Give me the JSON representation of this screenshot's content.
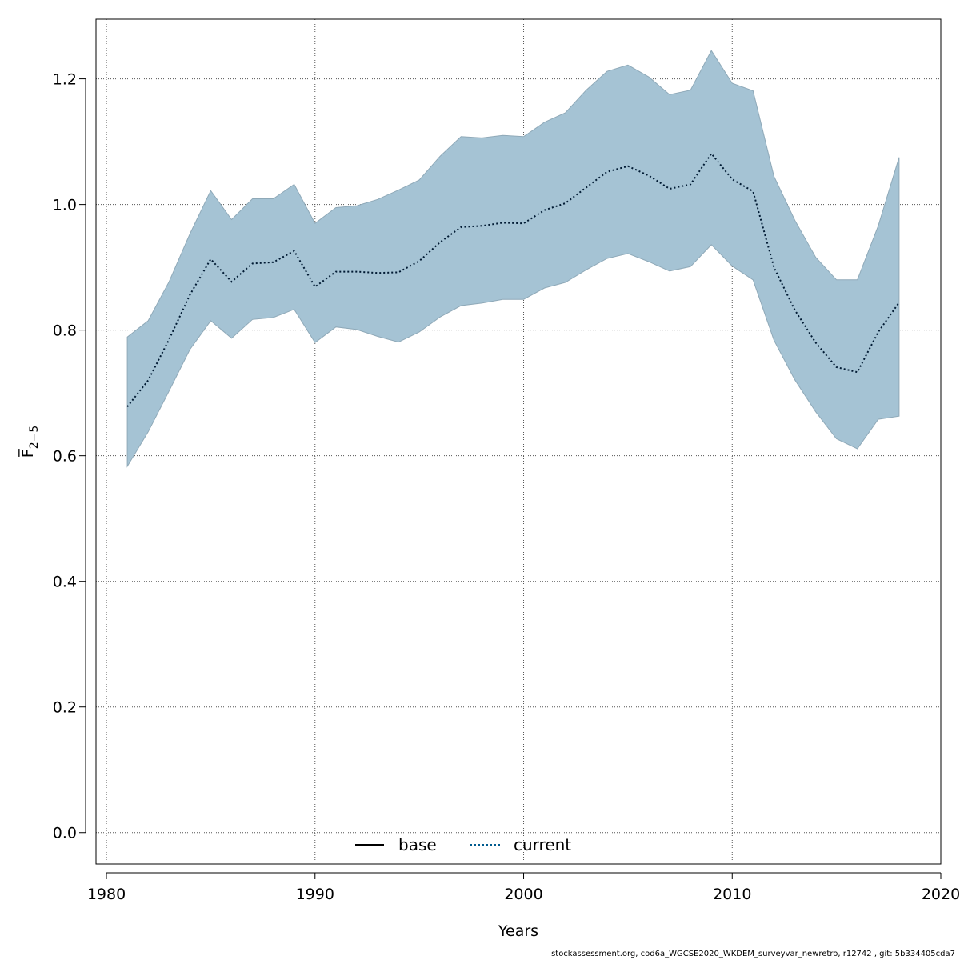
{
  "chart_data": {
    "type": "line",
    "xlabel": "Years",
    "ylabel": "F̅",
    "ylabel_sub": "2−5",
    "xlim": [
      1979.5,
      2020
    ],
    "ylim": [
      -0.05,
      1.295
    ],
    "x_ticks": [
      1980,
      1990,
      2000,
      2010,
      2020
    ],
    "y_ticks": [
      0.0,
      0.2,
      0.4,
      0.6,
      0.8,
      1.0,
      1.2
    ],
    "x_tick_labels": [
      "1980",
      "1990",
      "2000",
      "2010",
      "2020"
    ],
    "y_tick_labels": [
      "0.0",
      "0.2",
      "0.4",
      "0.6",
      "0.8",
      "1.0",
      "1.2"
    ],
    "grid": true,
    "legend_position": "bottom-center",
    "legend": [
      {
        "label": "base",
        "style": "solid",
        "color": "#000000"
      },
      {
        "label": "current",
        "style": "dotted",
        "color": "#005b8f"
      }
    ],
    "band_color": "#a5c3d4",
    "x": [
      1981,
      1982,
      1983,
      1984,
      1985,
      1986,
      1987,
      1988,
      1989,
      1990,
      1991,
      1992,
      1993,
      1994,
      1995,
      1996,
      1997,
      1998,
      1999,
      2000,
      2001,
      2002,
      2003,
      2004,
      2005,
      2006,
      2007,
      2008,
      2009,
      2010,
      2011,
      2012,
      2013,
      2014,
      2015,
      2016,
      2017,
      2018
    ],
    "series": [
      {
        "name": "current",
        "values": [
          0.678,
          0.72,
          0.785,
          0.856,
          0.913,
          0.877,
          0.906,
          0.908,
          0.926,
          0.869,
          0.893,
          0.893,
          0.891,
          0.892,
          0.91,
          0.94,
          0.964,
          0.966,
          0.971,
          0.97,
          0.991,
          1.002,
          1.027,
          1.052,
          1.061,
          1.046,
          1.025,
          1.032,
          1.081,
          1.04,
          1.021,
          0.9,
          0.832,
          0.78,
          0.741,
          0.733,
          0.797,
          0.844
        ]
      }
    ],
    "band_upper": [
      0.789,
      0.815,
      0.877,
      0.953,
      1.022,
      0.976,
      1.009,
      1.009,
      1.032,
      0.97,
      0.995,
      0.998,
      1.008,
      1.023,
      1.039,
      1.077,
      1.108,
      1.106,
      1.11,
      1.108,
      1.131,
      1.146,
      1.182,
      1.212,
      1.222,
      1.203,
      1.175,
      1.182,
      1.245,
      1.193,
      1.181,
      1.045,
      0.975,
      0.916,
      0.88,
      0.88,
      0.966,
      1.075
    ],
    "band_lower": [
      0.583,
      0.638,
      0.703,
      0.769,
      0.815,
      0.787,
      0.817,
      0.82,
      0.833,
      0.78,
      0.805,
      0.801,
      0.79,
      0.781,
      0.797,
      0.821,
      0.839,
      0.843,
      0.849,
      0.849,
      0.867,
      0.876,
      0.896,
      0.914,
      0.922,
      0.909,
      0.894,
      0.901,
      0.936,
      0.902,
      0.88,
      0.784,
      0.721,
      0.67,
      0.627,
      0.611,
      0.658,
      0.663
    ]
  },
  "footer": "stockassessment.org, cod6a_WGCSE2020_WKDEM_surveyvar_newretro, r12742 , git: 5b334405cda7"
}
